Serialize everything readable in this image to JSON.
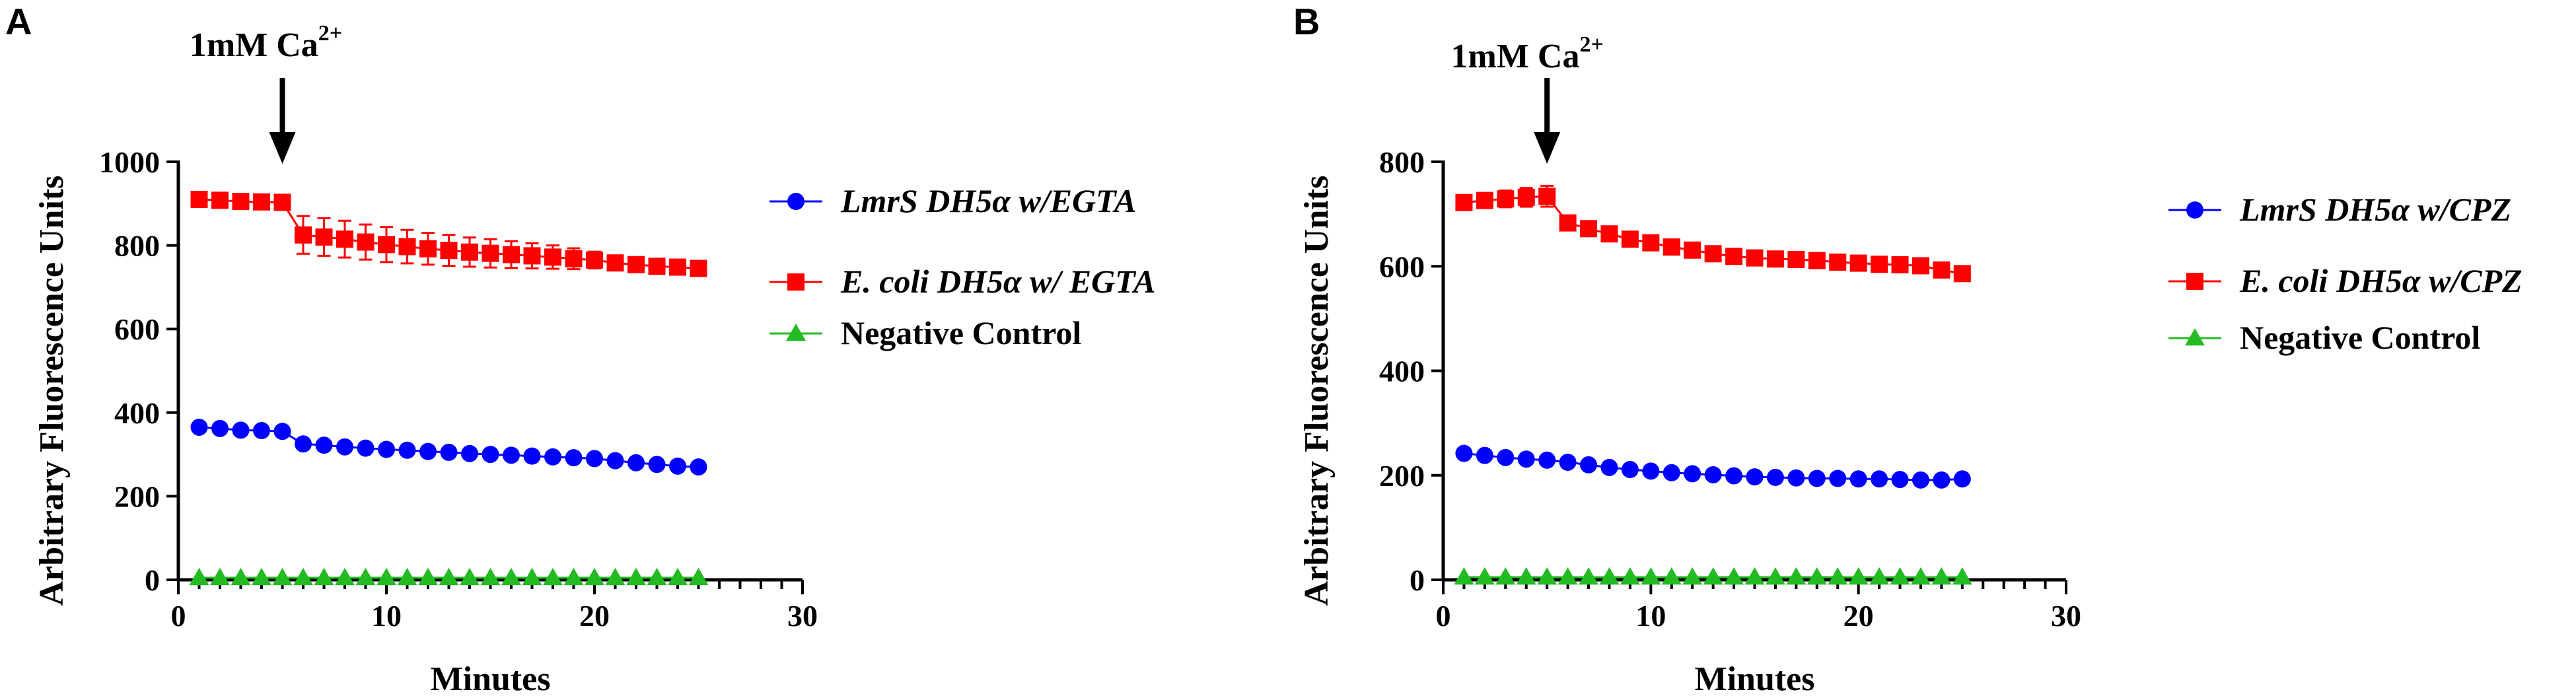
{
  "chart_data": [
    {
      "panel": "A",
      "type": "line",
      "title": "",
      "xlabel": "Minutes",
      "ylabel": "Arbitrary Fluorescence Units",
      "xlim": [
        0,
        30
      ],
      "ylim": [
        0,
        1000
      ],
      "xticks": [
        0,
        10,
        20,
        30
      ],
      "yticks": [
        0,
        200,
        400,
        600,
        800,
        1000
      ],
      "annotation": {
        "text": "1mM Ca",
        "superscript": "2+",
        "x": 5
      },
      "x": [
        1,
        2,
        3,
        4,
        5,
        6,
        7,
        8,
        9,
        10,
        11,
        12,
        13,
        14,
        15,
        16,
        17,
        18,
        19,
        20,
        21,
        22,
        23,
        24,
        25
      ],
      "series": [
        {
          "name": "LmrS DH5α w/EGTA",
          "color": "#0000ff",
          "marker": "circle",
          "values": [
            365,
            362,
            358,
            357,
            355,
            325,
            322,
            318,
            315,
            312,
            310,
            307,
            305,
            302,
            300,
            298,
            296,
            294,
            292,
            290,
            285,
            280,
            276,
            272,
            270
          ],
          "errors": [
            4,
            4,
            4,
            4,
            4,
            4,
            4,
            4,
            4,
            4,
            4,
            4,
            4,
            4,
            4,
            4,
            4,
            4,
            4,
            4,
            4,
            4,
            4,
            4,
            4
          ]
        },
        {
          "name": "E. coli DH5α w/ EGTA",
          "color": "#ff0000",
          "marker": "square",
          "values": [
            910,
            908,
            905,
            904,
            903,
            825,
            820,
            815,
            808,
            802,
            797,
            792,
            788,
            784,
            781,
            778,
            775,
            772,
            768,
            765,
            758,
            754,
            750,
            748,
            745
          ],
          "errors": [
            8,
            6,
            6,
            6,
            6,
            45,
            45,
            44,
            42,
            42,
            40,
            38,
            37,
            35,
            34,
            32,
            30,
            28,
            25,
            20,
            14,
            10,
            8,
            8,
            8
          ]
        },
        {
          "name": "Negative Control",
          "color": "#22bb22",
          "marker": "triangle",
          "values": [
            5,
            5,
            5,
            5,
            5,
            5,
            5,
            5,
            5,
            5,
            5,
            5,
            5,
            5,
            5,
            5,
            5,
            5,
            5,
            5,
            5,
            5,
            5,
            5,
            5
          ],
          "errors": [
            0,
            0,
            0,
            0,
            0,
            0,
            0,
            0,
            0,
            0,
            0,
            0,
            0,
            0,
            0,
            0,
            0,
            0,
            0,
            0,
            0,
            0,
            0,
            0,
            0
          ]
        }
      ],
      "legend_position": "right"
    },
    {
      "panel": "B",
      "type": "line",
      "title": "",
      "xlabel": "Minutes",
      "ylabel": "Arbitrary Fluorescence Units",
      "xlim": [
        0,
        30
      ],
      "ylim": [
        0,
        800
      ],
      "xticks": [
        0,
        10,
        20,
        30
      ],
      "yticks": [
        0,
        200,
        400,
        600,
        800
      ],
      "annotation": {
        "text": "1mM Ca",
        "superscript": "2+",
        "x": 5
      },
      "x": [
        1,
        2,
        3,
        4,
        5,
        6,
        7,
        8,
        9,
        10,
        11,
        12,
        13,
        14,
        15,
        16,
        17,
        18,
        19,
        20,
        21,
        22,
        23,
        24,
        25
      ],
      "series": [
        {
          "name": "LmrS DH5α w/CPZ",
          "color": "#0000ff",
          "marker": "circle",
          "values": [
            242,
            238,
            234,
            231,
            229,
            225,
            220,
            215,
            211,
            208,
            205,
            203,
            201,
            199,
            197,
            196,
            195,
            194,
            194,
            193,
            193,
            192,
            191,
            191,
            193
          ],
          "errors": [
            3,
            3,
            3,
            3,
            3,
            3,
            3,
            3,
            3,
            3,
            3,
            3,
            3,
            3,
            3,
            3,
            3,
            3,
            3,
            3,
            3,
            3,
            3,
            3,
            3
          ]
        },
        {
          "name": "E. coli DH5α w/CPZ",
          "color": "#ff0000",
          "marker": "square",
          "values": [
            722,
            726,
            729,
            732,
            734,
            683,
            672,
            662,
            652,
            645,
            637,
            631,
            624,
            619,
            616,
            614,
            613,
            611,
            608,
            606,
            604,
            603,
            601,
            593,
            586
          ],
          "errors": [
            10,
            14,
            16,
            18,
            20,
            8,
            6,
            6,
            6,
            6,
            6,
            6,
            6,
            6,
            6,
            6,
            10,
            10,
            6,
            6,
            6,
            10,
            10,
            6,
            6
          ]
        },
        {
          "name": "Negative Control",
          "color": "#22bb22",
          "marker": "triangle",
          "values": [
            5,
            5,
            5,
            5,
            5,
            5,
            5,
            5,
            5,
            5,
            5,
            5,
            5,
            5,
            5,
            5,
            5,
            5,
            5,
            5,
            5,
            5,
            5,
            5,
            5
          ],
          "errors": [
            0,
            0,
            0,
            0,
            0,
            0,
            0,
            0,
            0,
            0,
            0,
            0,
            0,
            0,
            0,
            0,
            0,
            0,
            0,
            0,
            0,
            0,
            0,
            0,
            0
          ]
        }
      ],
      "legend_position": "right"
    }
  ]
}
